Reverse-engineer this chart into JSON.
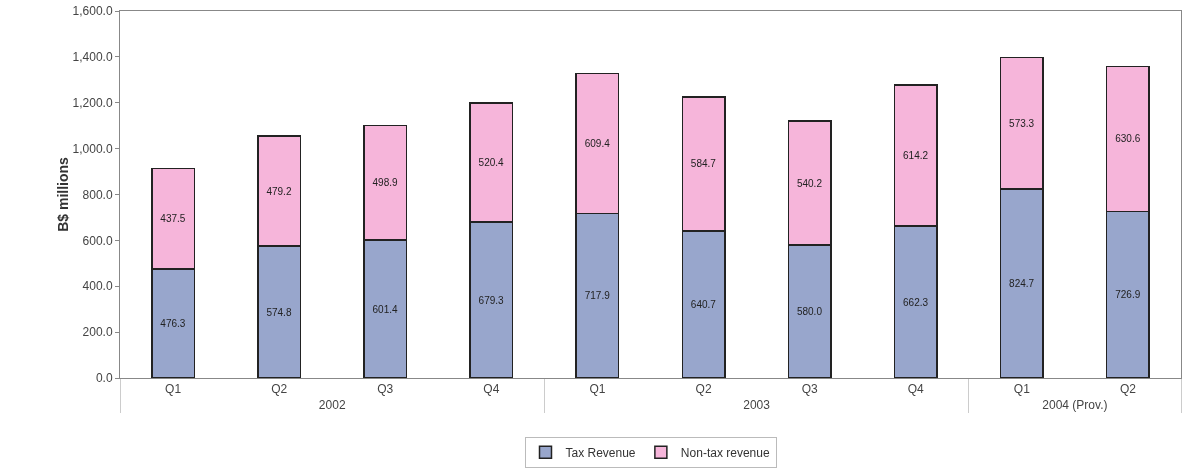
{
  "chart_data": {
    "type": "bar",
    "stacked": true,
    "ylabel": "B$ millions",
    "categories": [
      "Q1",
      "Q2",
      "Q3",
      "Q4",
      "Q1",
      "Q2",
      "Q3",
      "Q4",
      "Q1",
      "Q2"
    ],
    "annotations": [
      "2002",
      "2003",
      "2004 (Prov.)"
    ],
    "series": [
      {
        "name": "Tax Revenue",
        "color": "#98a6cc",
        "values": [
          476.3,
          574.8,
          601.4,
          679.3,
          717.9,
          640.7,
          580.0,
          662.3,
          824.7,
          726.9
        ],
        "value_labels": [
          "476.3",
          "574.8",
          "601.4",
          "679.3",
          "717.9",
          "640.7",
          "580.0",
          "662.3",
          "824.7",
          "726.9"
        ]
      },
      {
        "name": "Non-tax revenue",
        "color": "#f6b5da",
        "values": [
          437.5,
          479.2,
          498.9,
          520.4,
          609.4,
          584.7,
          540.2,
          614.2,
          573.3,
          630.6
        ],
        "value_labels": [
          "437.5",
          "479.2",
          "498.9",
          "520.4",
          "609.4",
          "584.7",
          "540.2",
          "614.2",
          "573.3",
          "630.6"
        ]
      }
    ],
    "ylim": [
      0,
      1600
    ],
    "yticks": [
      {
        "value": 0,
        "label": "0.0"
      },
      {
        "value": 200,
        "label": "200.0"
      },
      {
        "value": 400,
        "label": "400.0"
      },
      {
        "value": 600,
        "label": "600.0"
      },
      {
        "value": 800,
        "label": "800.0"
      },
      {
        "value": 1000,
        "label": "1,000.0"
      },
      {
        "value": 1200,
        "label": "1,200.0"
      },
      {
        "value": 1400,
        "label": "1,400.0"
      },
      {
        "value": 1600,
        "label": "1,600.0"
      }
    ],
    "grid": false,
    "legend": "bottom"
  }
}
